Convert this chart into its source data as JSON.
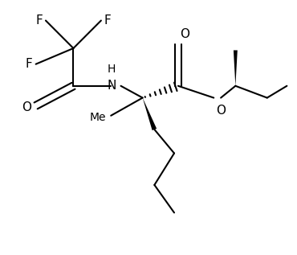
{
  "background_color": "#ffffff",
  "line_color": "#000000",
  "line_width": 1.5,
  "font_size": 11,
  "figsize": [
    3.7,
    3.17
  ],
  "dpi": 100,
  "xlim": [
    0,
    7.4
  ],
  "ylim": [
    -2.2,
    3.8
  ]
}
